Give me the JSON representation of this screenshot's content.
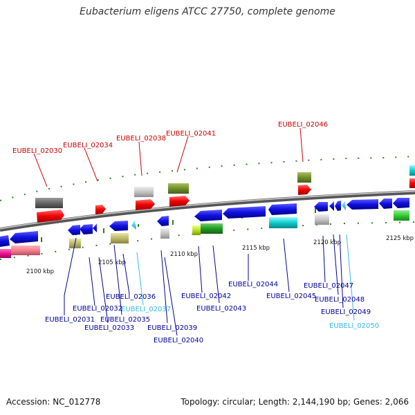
{
  "title": "Eubacterium eligens ATCC 27750, complete genome",
  "footer": {
    "accession": "Accession: NC_012778",
    "summary": "Topology: circular; Length: 2,144,190 bp; Genes: 2,066"
  },
  "colors": {
    "upper_label": "#cc0000",
    "lower_label": "#000099",
    "highlight_label": "#33bbee",
    "backbone": "#8a8a8a",
    "tick": "#2e7d1e"
  },
  "scale_labels": [
    "2100 kbp",
    "2105 kbp",
    "2110 kbp",
    "2115 kbp",
    "2120 kbp",
    "2125 kbp"
  ],
  "upper_genes": [
    "EUBELI_02030",
    "EUBELI_02034",
    "EUBELI_02038",
    "EUBELI_02041",
    "EUBELI_02046"
  ],
  "lower_genes": [
    "EUBELI_02031",
    "EUBELI_02032",
    "EUBELI_02033",
    "EUBELI_02035",
    "EUBELI_02036",
    "EUBELI_02037",
    "EUBELI_02039",
    "EUBELI_02040",
    "EUBELI_02042",
    "EUBELI_02043",
    "EUBELI_02044",
    "EUBELI_02045",
    "EUBELI_02047",
    "EUBELI_02048",
    "EUBELI_02049",
    "EUBELI_02050"
  ]
}
